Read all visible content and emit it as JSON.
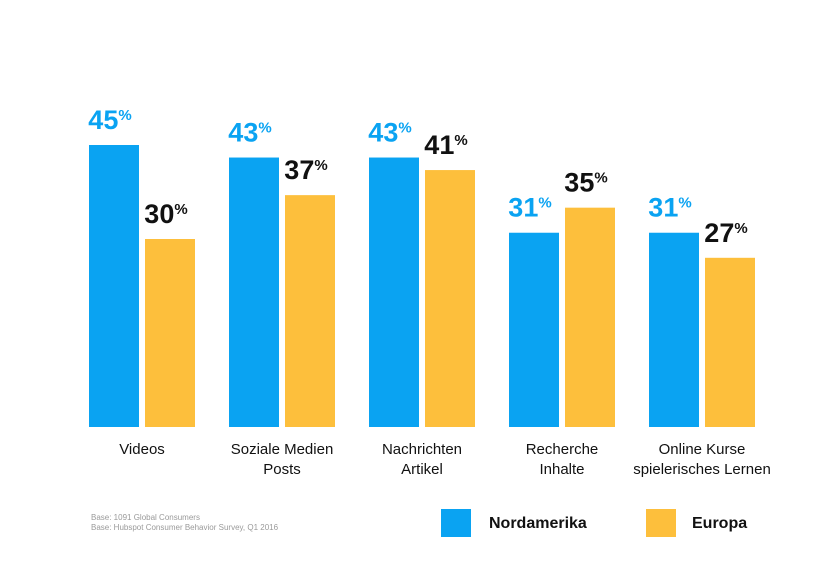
{
  "chart_data": {
    "type": "bar",
    "categories": [
      [
        "Videos"
      ],
      [
        "Soziale Medien",
        "Posts"
      ],
      [
        "Nachrichten",
        "Artikel"
      ],
      [
        "Recherche",
        "Inhalte"
      ],
      [
        "Online Kurse",
        "spielerisches Lernen"
      ]
    ],
    "series": [
      {
        "name": "Nordamerika",
        "values": [
          45,
          43,
          43,
          31,
          31
        ],
        "color": "#0aa3f2",
        "label_color": "#0aa3f2"
      },
      {
        "name": "Europa",
        "values": [
          30,
          37,
          41,
          35,
          27
        ],
        "color": "#fdbf3c",
        "label_color": "#111111"
      }
    ],
    "value_suffix": "%",
    "ylim": [
      0,
      45
    ],
    "grid": false,
    "legend_position": "bottom-right"
  },
  "notes": [
    "Base: 1091 Global Consumers",
    "Base: Hubspot Consumer Behavior Survey, Q1 2016"
  ]
}
